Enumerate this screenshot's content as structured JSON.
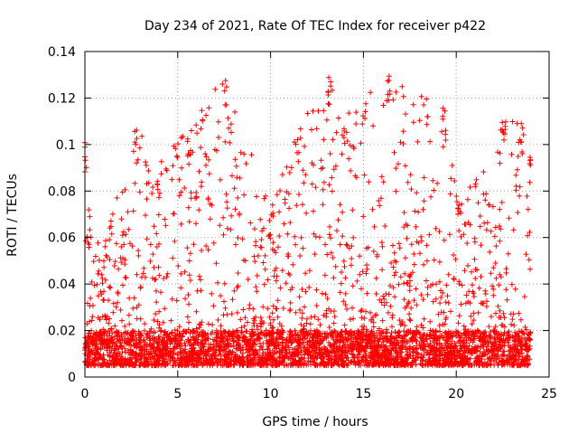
{
  "chart_data": {
    "type": "scatter",
    "title": "Day 234 of 2021, Rate Of TEC Index for receiver p422",
    "xlabel": "GPS time / hours",
    "ylabel": "ROTI / TECUs",
    "xlim": [
      0,
      25
    ],
    "ylim": [
      0,
      0.14
    ],
    "x_ticks": [
      "0",
      "5",
      "10",
      "15",
      "20",
      "25"
    ],
    "y_ticks": [
      "0",
      "0.02",
      "0.04",
      "0.06",
      "0.08",
      "0.1",
      "0.12",
      "0.14"
    ],
    "grid": true,
    "marker": "+",
    "series": [
      {
        "color": "#ff0000",
        "x_range": [
          0,
          24
        ],
        "approx_envelope": [
          {
            "x": 0.0,
            "y": 0.102
          },
          {
            "x": 0.3,
            "y": 0.07
          },
          {
            "x": 1.0,
            "y": 0.055
          },
          {
            "x": 2.7,
            "y": 0.107
          },
          {
            "x": 4.0,
            "y": 0.095
          },
          {
            "x": 5.6,
            "y": 0.106
          },
          {
            "x": 7.5,
            "y": 0.13
          },
          {
            "x": 10.0,
            "y": 0.075
          },
          {
            "x": 11.5,
            "y": 0.107
          },
          {
            "x": 13.2,
            "y": 0.13
          },
          {
            "x": 14.0,
            "y": 0.115
          },
          {
            "x": 16.3,
            "y": 0.13
          },
          {
            "x": 19.3,
            "y": 0.116
          },
          {
            "x": 20.2,
            "y": 0.075
          },
          {
            "x": 22.5,
            "y": 0.111
          },
          {
            "x": 23.5,
            "y": 0.114
          },
          {
            "x": 24.0,
            "y": 0.097
          }
        ],
        "approx_baseline": [
          0.005,
          0.02
        ]
      }
    ]
  }
}
